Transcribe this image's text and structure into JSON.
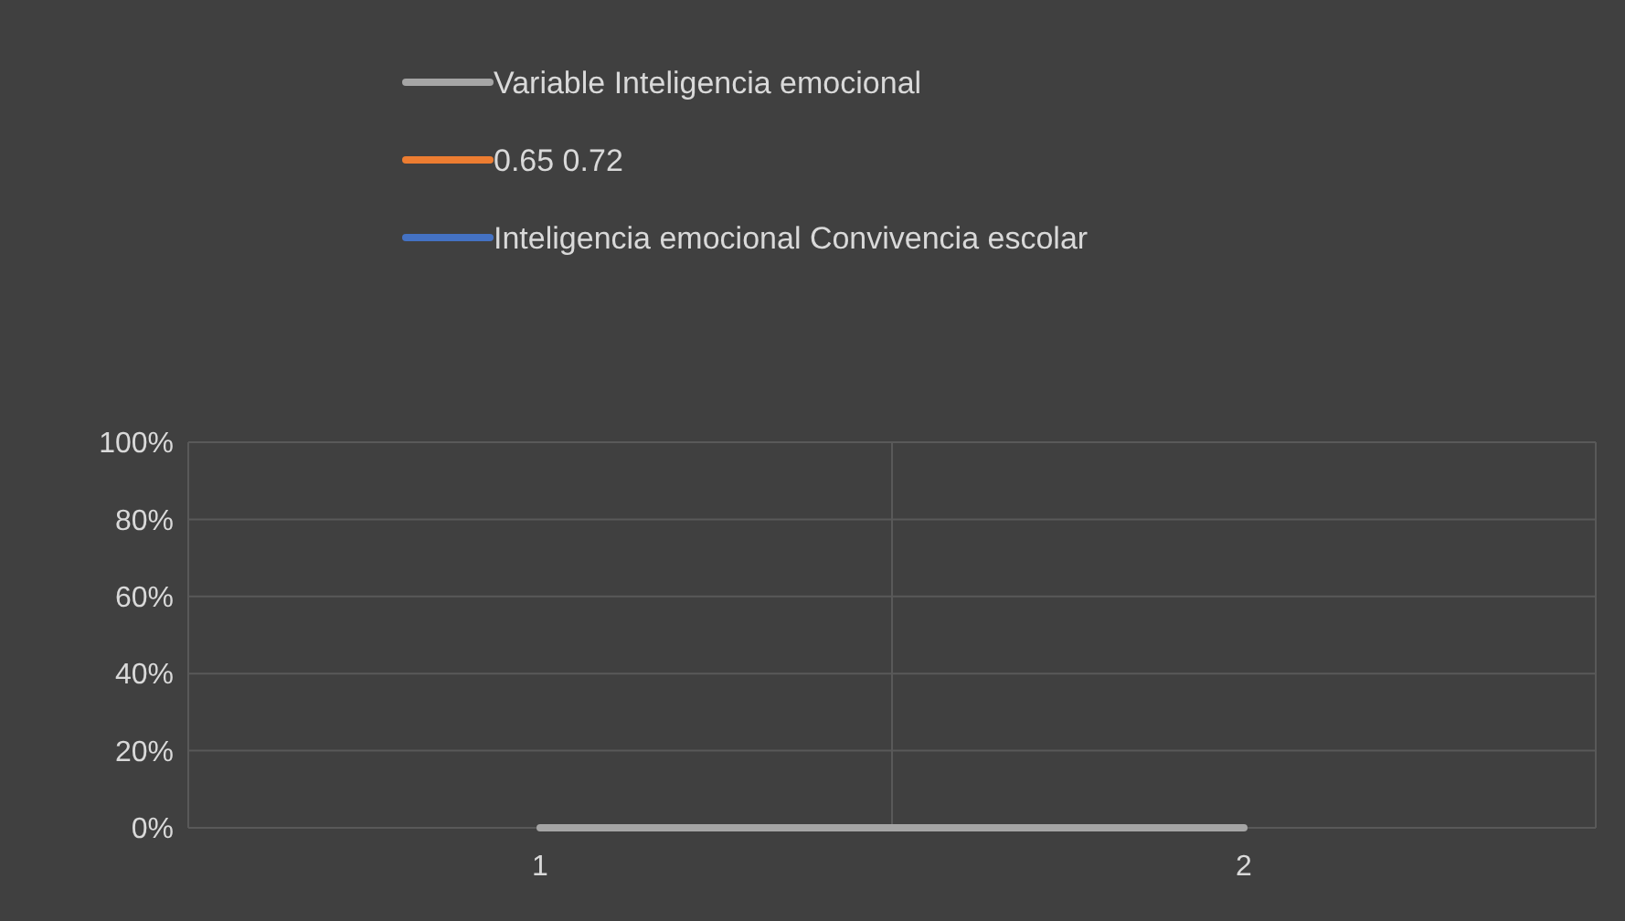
{
  "chart_data": {
    "type": "line",
    "categories": [
      "1",
      "2"
    ],
    "series": [
      {
        "name": "Variable Inteligencia emocional",
        "color": "#a5a5a5",
        "values": [
          0,
          0
        ]
      },
      {
        "name": "0.65 0.72",
        "color": "#ed7d31",
        "values": [
          null,
          null
        ]
      },
      {
        "name": "Inteligencia emocional Convivencia escolar",
        "color": "#4472c4",
        "values": [
          null,
          null
        ]
      }
    ],
    "ylim": [
      0,
      1
    ],
    "yticks": [
      {
        "value": 0,
        "label": "0%"
      },
      {
        "value": 0.2,
        "label": "20%"
      },
      {
        "value": 0.4,
        "label": "40%"
      },
      {
        "value": 0.6,
        "label": "60%"
      },
      {
        "value": 0.8,
        "label": "80%"
      },
      {
        "value": 1,
        "label": "100%"
      }
    ],
    "grid": true,
    "legend": "top",
    "marker": "none",
    "line_style": "solid"
  }
}
